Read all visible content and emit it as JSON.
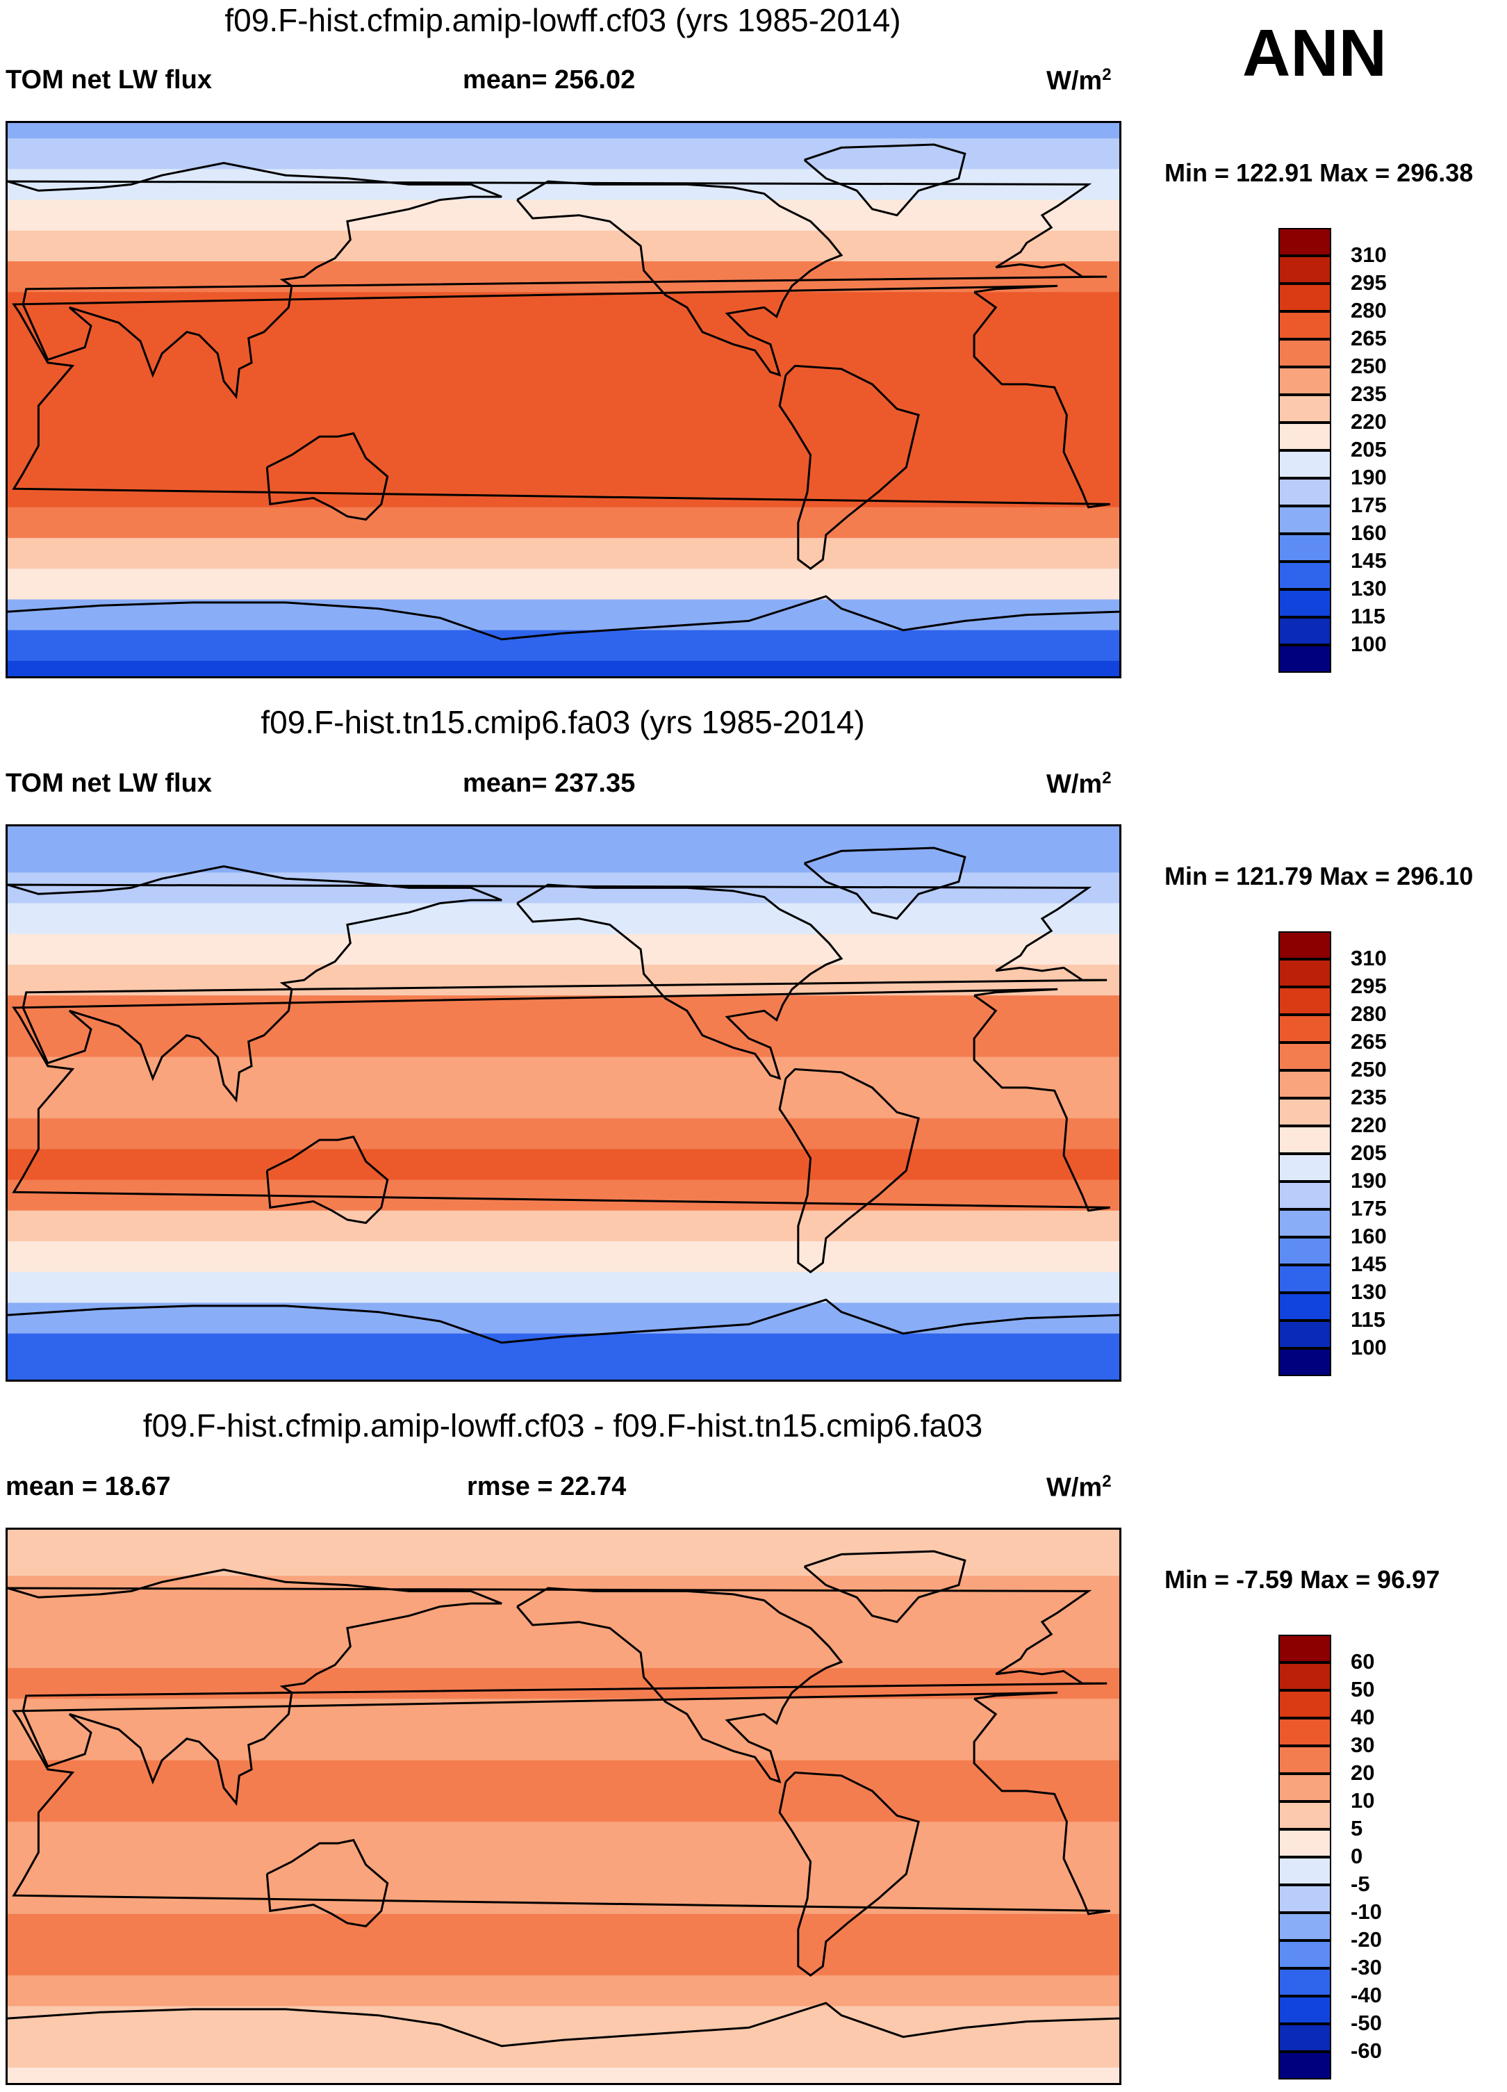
{
  "season": "ANN",
  "panels": [
    {
      "title": "f09.F-hist.cfmip.amip-lowff.cf03 (yrs 1985-2014)",
      "left_label": "TOM net LW flux",
      "center_label": "mean= 256.02",
      "units_base": "W/m",
      "units_exp": "2",
      "minmax": "Min = 122.91 Max = 296.38"
    },
    {
      "title": "f09.F-hist.tn15.cmip6.fa03 (yrs 1985-2014)",
      "left_label": "TOM net LW flux",
      "center_label": "mean= 237.35",
      "units_base": "W/m",
      "units_exp": "2",
      "minmax": "Min = 121.79 Max = 296.10"
    },
    {
      "title": "f09.F-hist.cfmip.amip-lowff.cf03 - f09.F-hist.tn15.cmip6.fa03",
      "left_label": "mean =  18.67",
      "center_label": "rmse =  22.74",
      "units_base": "W/m",
      "units_exp": "2",
      "minmax": "Min =  -7.59 Max =  96.97"
    }
  ],
  "chart_data": [
    {
      "type": "heatmap",
      "title": "f09.F-hist.cfmip.amip-lowff.cf03 (yrs 1985-2014)",
      "variable": "TOM net LW flux",
      "mean": 256.02,
      "min": 122.91,
      "max": 296.38,
      "units": "W/m2",
      "x_range": [
        30,
        390
      ],
      "y_range": [
        -90,
        90
      ],
      "contour_levels": [
        100,
        115,
        130,
        145,
        160,
        175,
        190,
        205,
        220,
        235,
        250,
        265,
        280,
        295,
        310
      ],
      "colors": [
        "#00007f",
        "#0a2ab8",
        "#1144dd",
        "#2f64ec",
        "#5c8cf4",
        "#8aadf7",
        "#b8cdf9",
        "#deeafb",
        "#fde8db",
        "#fcc9ad",
        "#f9a47c",
        "#f47d50",
        "#ec5a2c",
        "#da3a14",
        "#bc2008",
        "#8c0000"
      ],
      "zonal_profile": [
        {
          "lat": 90,
          "value": 170
        },
        {
          "lat": 80,
          "value": 175
        },
        {
          "lat": 70,
          "value": 196
        },
        {
          "lat": 60,
          "value": 212
        },
        {
          "lat": 50,
          "value": 230
        },
        {
          "lat": 40,
          "value": 252
        },
        {
          "lat": 30,
          "value": 270
        },
        {
          "lat": 20,
          "value": 277
        },
        {
          "lat": 10,
          "value": 270
        },
        {
          "lat": 0,
          "value": 266
        },
        {
          "lat": -10,
          "value": 274
        },
        {
          "lat": -20,
          "value": 278
        },
        {
          "lat": -30,
          "value": 270
        },
        {
          "lat": -40,
          "value": 252
        },
        {
          "lat": -50,
          "value": 228
        },
        {
          "lat": -60,
          "value": 208
        },
        {
          "lat": -70,
          "value": 160
        },
        {
          "lat": -80,
          "value": 135
        },
        {
          "lat": -90,
          "value": 125
        }
      ]
    },
    {
      "type": "heatmap",
      "title": "f09.F-hist.tn15.cmip6.fa03 (yrs 1985-2014)",
      "variable": "TOM net LW flux",
      "mean": 237.35,
      "min": 121.79,
      "max": 296.1,
      "units": "W/m2",
      "x_range": [
        30,
        390
      ],
      "y_range": [
        -90,
        90
      ],
      "contour_levels": [
        100,
        115,
        130,
        145,
        160,
        175,
        190,
        205,
        220,
        235,
        250,
        265,
        280,
        295,
        310
      ],
      "colors": [
        "#00007f",
        "#0a2ab8",
        "#1144dd",
        "#2f64ec",
        "#5c8cf4",
        "#8aadf7",
        "#b8cdf9",
        "#deeafb",
        "#fde8db",
        "#fcc9ad",
        "#f9a47c",
        "#f47d50",
        "#ec5a2c",
        "#da3a14",
        "#bc2008",
        "#8c0000"
      ],
      "zonal_profile": [
        {
          "lat": 90,
          "value": 165
        },
        {
          "lat": 80,
          "value": 172
        },
        {
          "lat": 70,
          "value": 185
        },
        {
          "lat": 60,
          "value": 198
        },
        {
          "lat": 50,
          "value": 210
        },
        {
          "lat": 40,
          "value": 228
        },
        {
          "lat": 30,
          "value": 250
        },
        {
          "lat": 20,
          "value": 262
        },
        {
          "lat": 10,
          "value": 245
        },
        {
          "lat": 0,
          "value": 240
        },
        {
          "lat": -10,
          "value": 255
        },
        {
          "lat": -20,
          "value": 265
        },
        {
          "lat": -30,
          "value": 250
        },
        {
          "lat": -40,
          "value": 230
        },
        {
          "lat": -50,
          "value": 210
        },
        {
          "lat": -60,
          "value": 195
        },
        {
          "lat": -70,
          "value": 170
        },
        {
          "lat": -80,
          "value": 140
        },
        {
          "lat": -90,
          "value": 130
        }
      ]
    },
    {
      "type": "heatmap",
      "title": "f09.F-hist.cfmip.amip-lowff.cf03 - f09.F-hist.tn15.cmip6.fa03",
      "mean": 18.67,
      "rmse": 22.74,
      "min": -7.59,
      "max": 96.97,
      "units": "W/m2",
      "x_range": [
        30,
        390
      ],
      "y_range": [
        -90,
        90
      ],
      "contour_levels": [
        -60,
        -50,
        -40,
        -30,
        -20,
        -10,
        -5,
        0,
        5,
        10,
        20,
        30,
        40,
        50,
        60
      ],
      "colors": [
        "#00007f",
        "#0a2ab8",
        "#1144dd",
        "#2f64ec",
        "#5c8cf4",
        "#8aadf7",
        "#b8cdf9",
        "#deeafb",
        "#fde8db",
        "#fcc9ad",
        "#f9a47c",
        "#f47d50",
        "#ec5a2c",
        "#da3a14",
        "#bc2008",
        "#8c0000"
      ],
      "zonal_profile": [
        {
          "lat": 90,
          "value": 6
        },
        {
          "lat": 80,
          "value": 8
        },
        {
          "lat": 70,
          "value": 14
        },
        {
          "lat": 60,
          "value": 16
        },
        {
          "lat": 50,
          "value": 18
        },
        {
          "lat": 40,
          "value": 20
        },
        {
          "lat": 30,
          "value": 18
        },
        {
          "lat": 20,
          "value": 14
        },
        {
          "lat": 10,
          "value": 24
        },
        {
          "lat": 0,
          "value": 26
        },
        {
          "lat": -10,
          "value": 18
        },
        {
          "lat": -20,
          "value": 12
        },
        {
          "lat": -30,
          "value": 18
        },
        {
          "lat": -40,
          "value": 22
        },
        {
          "lat": -50,
          "value": 20
        },
        {
          "lat": -60,
          "value": 14
        },
        {
          "lat": -70,
          "value": 8
        },
        {
          "lat": -80,
          "value": 5
        },
        {
          "lat": -90,
          "value": 4
        }
      ]
    }
  ]
}
